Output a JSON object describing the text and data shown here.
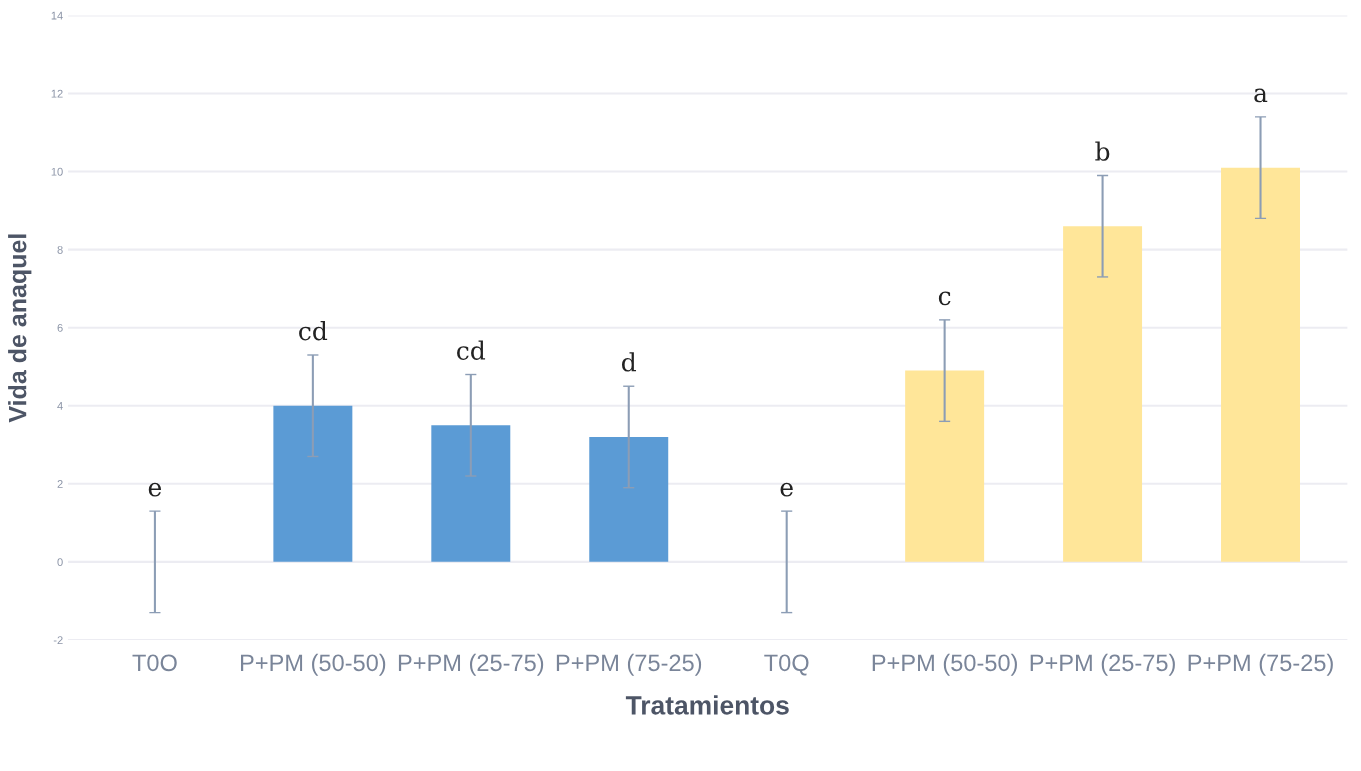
{
  "chart_data": {
    "type": "bar",
    "xlabel": "Tratamientos",
    "ylabel": "Vida de anaquel",
    "categories": [
      "T0O",
      "P+PM (50-50)",
      "P+PM (25-75)",
      "P+PM (75-25)",
      "T0Q",
      "P+PM (50-50)",
      "P+PM (25-75)",
      "P+PM (75-25)"
    ],
    "values": [
      0,
      4.0,
      3.5,
      3.2,
      0,
      4.9,
      8.6,
      10.1
    ],
    "colors": [
      "#5b9bd5",
      "#5b9bd5",
      "#5b9bd5",
      "#5b9bd5",
      "#ffe699",
      "#ffe699",
      "#ffe699",
      "#ffe699"
    ],
    "errors": [
      1.3,
      1.3,
      1.3,
      1.3,
      1.3,
      1.3,
      1.3,
      1.3
    ],
    "value_labels": [
      "e",
      "cd",
      "cd",
      "d",
      "e",
      "c",
      "b",
      "a"
    ],
    "ylim": [
      -2,
      14
    ],
    "yticks": [
      -2,
      0,
      2,
      4,
      6,
      8,
      10,
      12,
      14
    ],
    "grid": "y"
  }
}
